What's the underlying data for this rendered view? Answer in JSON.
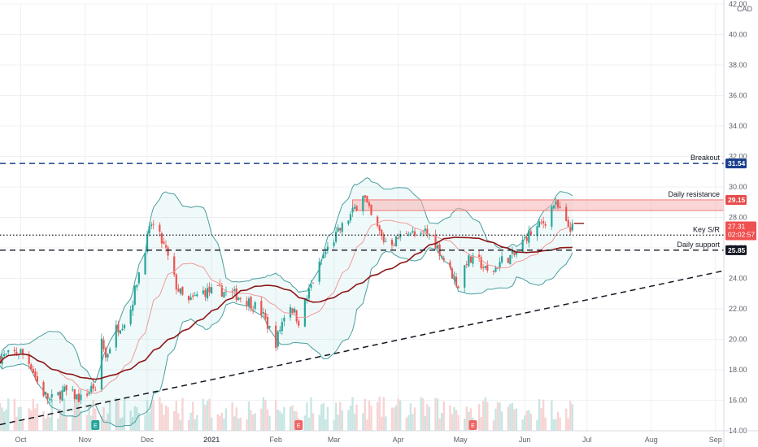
{
  "chart_data": {
    "type": "candlestick",
    "currency": "CAD",
    "y_axis": {
      "min": 14,
      "max": 42,
      "ticks": [
        "14.00",
        "16.00",
        "18.00",
        "20.00",
        "22.00",
        "24.00",
        "26.00",
        "28.00",
        "30.00",
        "32.00",
        "34.00",
        "36.00",
        "38.00",
        "40.00",
        "42.00"
      ]
    },
    "x_axis": {
      "start": "2020-09-21",
      "end": "2021-09-05",
      "ticks": [
        {
          "date": "2020-10-01",
          "label": "Oct"
        },
        {
          "date": "2020-11-01",
          "label": "Nov"
        },
        {
          "date": "2020-12-01",
          "label": "Dec"
        },
        {
          "date": "2021-01-01",
          "label": "2021"
        },
        {
          "date": "2021-02-01",
          "label": "Feb"
        },
        {
          "date": "2021-03-01",
          "label": "Mar"
        },
        {
          "date": "2021-04-01",
          "label": "Apr"
        },
        {
          "date": "2021-05-01",
          "label": "May"
        },
        {
          "date": "2021-06-01",
          "label": "Jun"
        },
        {
          "date": "2021-07-01",
          "label": "Jul"
        },
        {
          "date": "2021-08-01",
          "label": "Aug"
        },
        {
          "date": "2021-09-01",
          "label": "Sep"
        }
      ]
    },
    "anchors": [
      {
        "date": "2020-09-21",
        "price": 18.8
      },
      {
        "date": "2020-10-01",
        "price": 19.2
      },
      {
        "date": "2020-10-06",
        "price": 18.3
      },
      {
        "date": "2020-10-10",
        "price": 16.8
      },
      {
        "date": "2020-10-15",
        "price": 16.0
      },
      {
        "date": "2020-10-22",
        "price": 16.6
      },
      {
        "date": "2020-10-30",
        "price": 16.1
      },
      {
        "date": "2020-11-05",
        "price": 16.9
      },
      {
        "date": "2020-11-08",
        "price": 15.2
      },
      {
        "date": "2020-11-09",
        "price": 20.0
      },
      {
        "date": "2020-11-11",
        "price": 18.8
      },
      {
        "date": "2020-11-16",
        "price": 20.7
      },
      {
        "date": "2020-11-22",
        "price": 21.4
      },
      {
        "date": "2020-11-28",
        "price": 25.0
      },
      {
        "date": "2020-12-03",
        "price": 27.6
      },
      {
        "date": "2020-12-06",
        "price": 27.0
      },
      {
        "date": "2020-12-10",
        "price": 25.8
      },
      {
        "date": "2020-12-15",
        "price": 23.5
      },
      {
        "date": "2020-12-20",
        "price": 22.3
      },
      {
        "date": "2020-12-27",
        "price": 23.1
      },
      {
        "date": "2021-01-05",
        "price": 23.2
      },
      {
        "date": "2021-01-13",
        "price": 22.9
      },
      {
        "date": "2021-01-20",
        "price": 22.4
      },
      {
        "date": "2021-01-25",
        "price": 21.8
      },
      {
        "date": "2021-02-01",
        "price": 19.8
      },
      {
        "date": "2021-02-07",
        "price": 22.5
      },
      {
        "date": "2021-02-12",
        "price": 21.2
      },
      {
        "date": "2021-02-18",
        "price": 23.5
      },
      {
        "date": "2021-02-24",
        "price": 25.5
      },
      {
        "date": "2021-03-03",
        "price": 27.0
      },
      {
        "date": "2021-03-10",
        "price": 28.3
      },
      {
        "date": "2021-03-15",
        "price": 29.6
      },
      {
        "date": "2021-03-19",
        "price": 28.0
      },
      {
        "date": "2021-03-25",
        "price": 26.5
      },
      {
        "date": "2021-03-30",
        "price": 26.4
      },
      {
        "date": "2021-04-06",
        "price": 27.2
      },
      {
        "date": "2021-04-11",
        "price": 26.5
      },
      {
        "date": "2021-04-14",
        "price": 27.1
      },
      {
        "date": "2021-04-19",
        "price": 26.3
      },
      {
        "date": "2021-04-26",
        "price": 24.5
      },
      {
        "date": "2021-04-30",
        "price": 23.5
      },
      {
        "date": "2021-05-04",
        "price": 25.2
      },
      {
        "date": "2021-05-10",
        "price": 25.1
      },
      {
        "date": "2021-05-15",
        "price": 24.2
      },
      {
        "date": "2021-05-21",
        "price": 25.2
      },
      {
        "date": "2021-05-27",
        "price": 25.5
      },
      {
        "date": "2021-06-02",
        "price": 26.8
      },
      {
        "date": "2021-06-07",
        "price": 27.3
      },
      {
        "date": "2021-06-11",
        "price": 27.8
      },
      {
        "date": "2021-06-15",
        "price": 28.9
      },
      {
        "date": "2021-06-18",
        "price": 28.4
      },
      {
        "date": "2021-06-21",
        "price": 27.5
      },
      {
        "date": "2021-06-24",
        "price": 27.3
      }
    ],
    "last_date": "2021-06-24",
    "moving_averages": [
      {
        "period": 20,
        "color": "#ef9a9a"
      },
      {
        "period": 50,
        "color": "#8d1616"
      }
    ],
    "bollinger": {
      "period": 20,
      "stddev": 2,
      "color": "#4a9e9e",
      "fill": "#2aa3a3"
    },
    "levels": [
      {
        "label": "Breakout",
        "price": 31.54,
        "tag": "31.54",
        "style": "dashed",
        "color": "#1a3f8f",
        "tag_color": "#1a3f8f"
      },
      {
        "label": "Daily resistance",
        "price": 29.15,
        "tag": "29.15",
        "style": "zone",
        "color": "#f07a7a",
        "tag_color": "#e84b4b"
      },
      {
        "label": "Key S/R",
        "price": 26.84,
        "tag": "26.84",
        "style": "dotted",
        "color": "#131722",
        "tag_color": "#131722"
      },
      {
        "label": "Daily support",
        "price": 25.85,
        "tag": "25.85",
        "style": "dashed",
        "color": "#131722",
        "tag_color": "#131722"
      }
    ],
    "resistance_zone": {
      "low": 28.45,
      "high": 29.15,
      "start": "2021-03-10"
    },
    "trendlines": [
      {
        "from": {
          "date": "2020-09-21",
          "price": 14.4
        },
        "to": {
          "date": "2021-09-05",
          "price": 24.5
        },
        "style": "dashed",
        "color": "#131722"
      }
    ],
    "current_price": {
      "value": "27.31",
      "countdown": "02:02:57",
      "color": "#f05050"
    },
    "events": [
      {
        "date": "2020-11-06",
        "label": "E",
        "kind": "earnings-reported",
        "color": "#26a69a"
      },
      {
        "date": "2021-02-12",
        "label": "E",
        "kind": "earnings",
        "color": "#f06464"
      },
      {
        "date": "2021-05-07",
        "label": "E",
        "kind": "earnings",
        "color": "#f06464"
      }
    ],
    "colors": {
      "up": "#26a69a",
      "down": "#ef5350",
      "grid": "#eef0f4",
      "volume_up": "#c8e6e3",
      "volume_down": "#f7d4d4"
    }
  }
}
